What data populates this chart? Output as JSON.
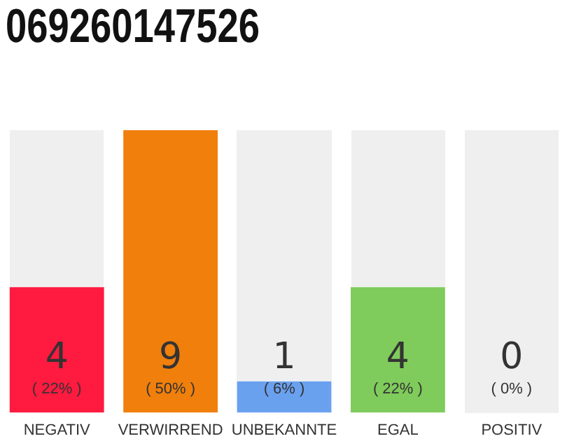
{
  "chart_data": {
    "type": "bar",
    "title": "069260147526",
    "categories": [
      "NEGATIV",
      "VERWIRREND",
      "UNBEKANNTE",
      "EGAL",
      "POSITIV"
    ],
    "values": [
      4,
      9,
      1,
      4,
      0
    ],
    "colors": [
      "#ff1a40",
      "#f07f0c",
      "#6aa1ef",
      "#7fcb5b",
      "#e0e0e0"
    ],
    "ylim": [
      0,
      9
    ],
    "tick_labels": "x",
    "grid": false,
    "legend": false,
    "data_labels": true,
    "annotations": [
      "( 22% )",
      "( 50% )",
      "( 6% )",
      "( 22% )",
      "( 0% )"
    ]
  }
}
